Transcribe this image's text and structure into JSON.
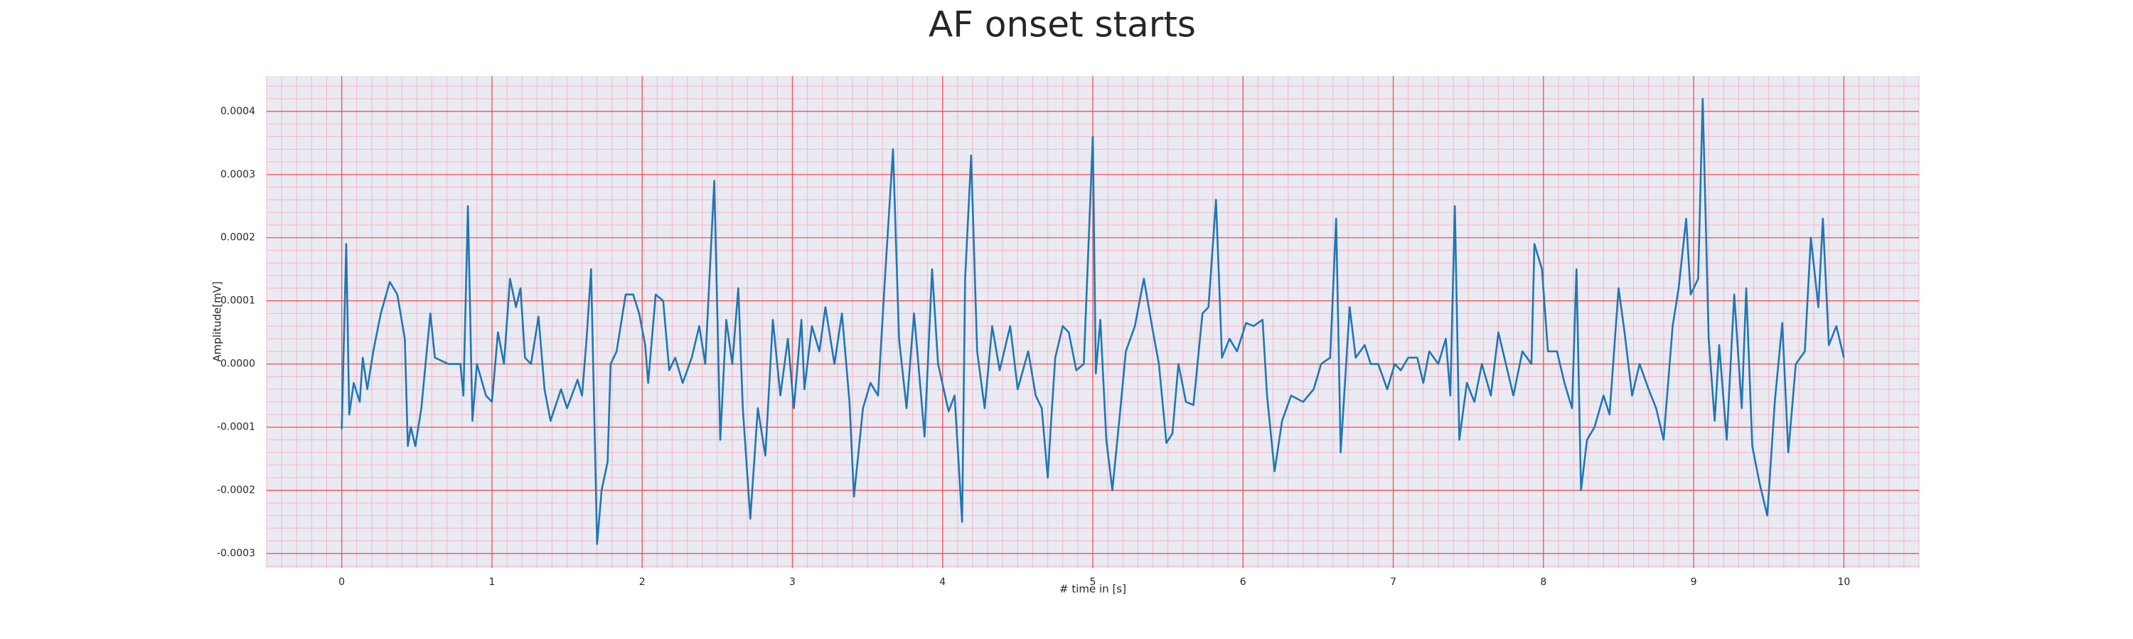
{
  "chart_data": {
    "type": "line",
    "title": "AF onset starts",
    "xlabel": "# time in [s]",
    "ylabel": "Amplitude[mV]",
    "color": "#1f77b4",
    "grid": true,
    "minor_grid": true,
    "xlim": [
      -0.5,
      10.5
    ],
    "ylim": [
      -0.000323,
      0.000456
    ],
    "xticks": [
      0,
      1,
      2,
      3,
      4,
      5,
      6,
      7,
      8,
      9,
      10
    ],
    "yticks": [
      -0.0003,
      -0.0002,
      -0.0001,
      {
        "value": 0,
        "label": "0.0000"
      },
      0.0001,
      0.0002,
      0.0003,
      0.0004
    ],
    "x": [
      0,
      0.03,
      0.05,
      0.08,
      0.12,
      0.14,
      0.17,
      0.21,
      0.26,
      0.32,
      0.37,
      0.42,
      0.44,
      0.46,
      0.49,
      0.53,
      0.59,
      0.62,
      0.71,
      0.79,
      0.81,
      0.84,
      0.87,
      0.9,
      0.96,
      1.0,
      1.04,
      1.08,
      1.12,
      1.16,
      1.19,
      1.22,
      1.26,
      1.31,
      1.35,
      1.39,
      1.46,
      1.5,
      1.57,
      1.6,
      1.63,
      1.66,
      1.7,
      1.73,
      1.77,
      1.79,
      1.83,
      1.89,
      1.94,
      1.98,
      2.02,
      2.04,
      2.09,
      2.14,
      2.18,
      2.22,
      2.27,
      2.33,
      2.38,
      2.42,
      2.48,
      2.52,
      2.56,
      2.6,
      2.64,
      2.67,
      2.72,
      2.77,
      2.82,
      2.87,
      2.92,
      2.97,
      3.01,
      3.06,
      3.08,
      3.13,
      3.18,
      3.22,
      3.28,
      3.33,
      3.38,
      3.41,
      3.47,
      3.52,
      3.57,
      3.62,
      3.67,
      3.71,
      3.76,
      3.81,
      3.88,
      3.93,
      3.97,
      4.04,
      4.08,
      4.13,
      4.15,
      4.19,
      4.23,
      4.28,
      4.33,
      4.38,
      4.45,
      4.5,
      4.57,
      4.62,
      4.66,
      4.7,
      4.72,
      4.75,
      4.8,
      4.84,
      4.89,
      4.94,
      5.0,
      5.02,
      5.05,
      5.09,
      5.13,
      5.18,
      5.22,
      5.28,
      5.34,
      5.39,
      5.44,
      5.49,
      5.53,
      5.57,
      5.62,
      5.67,
      5.73,
      5.77,
      5.82,
      5.86,
      5.91,
      5.96,
      6.02,
      6.07,
      6.13,
      6.16,
      6.21,
      6.26,
      6.32,
      6.4,
      6.47,
      6.52,
      6.58,
      6.62,
      6.65,
      6.71,
      6.75,
      6.81,
      6.85,
      6.9,
      6.96,
      7.01,
      7.05,
      7.1,
      7.16,
      7.2,
      7.24,
      7.3,
      7.35,
      7.38,
      7.41,
      7.44,
      7.49,
      7.54,
      7.59,
      7.65,
      7.7,
      7.76,
      7.8,
      7.86,
      7.92,
      7.94,
      7.99,
      8.03,
      8.09,
      8.14,
      8.19,
      8.22,
      8.25,
      8.29,
      8.34,
      8.4,
      8.44,
      8.5,
      8.54,
      8.59,
      8.64,
      8.7,
      8.75,
      8.8,
      8.86,
      8.9,
      8.95,
      8.98,
      9.03,
      9.06,
      9.1,
      9.14,
      9.17,
      9.22,
      9.27,
      9.32,
      9.35,
      9.39,
      9.44,
      9.49,
      9.54,
      9.59,
      9.63,
      9.68,
      9.74,
      9.78,
      9.83,
      9.86,
      9.9,
      9.95,
      10.0
    ],
    "values": [
      -0.000103,
      0.00019,
      -8e-05,
      -3e-05,
      -6e-05,
      1e-05,
      -4e-05,
      2e-05,
      8e-05,
      0.00013,
      0.00011,
      4e-05,
      -0.00013,
      -0.0001,
      -0.00013,
      -7e-05,
      8e-05,
      1e-05,
      0.0,
      0.0,
      -5e-05,
      0.00025,
      -9e-05,
      0.0,
      -5e-05,
      -6e-05,
      5e-05,
      0.0,
      0.000135,
      9e-05,
      0.00012,
      1e-05,
      0.0,
      7.5e-05,
      -4e-05,
      -9e-05,
      -4e-05,
      -7e-05,
      -2.5e-05,
      -5e-05,
      4e-05,
      0.00015,
      -0.000285,
      -0.0002,
      -0.000155,
      0.0,
      2e-05,
      0.00011,
      0.00011,
      8e-05,
      3e-05,
      -3e-05,
      0.00011,
      0.0001,
      -1e-05,
      1e-05,
      -3e-05,
      1e-05,
      6e-05,
      0.0,
      0.00029,
      -0.00012,
      7e-05,
      0.0,
      0.00012,
      -7e-05,
      -0.000245,
      -7e-05,
      -0.000145,
      7e-05,
      -5e-05,
      4e-05,
      -7e-05,
      7e-05,
      -4e-05,
      6e-05,
      2e-05,
      9e-05,
      0.0,
      8e-05,
      -6e-05,
      -0.00021,
      -7e-05,
      -3e-05,
      -5e-05,
      0.00015,
      0.00034,
      4e-05,
      -7e-05,
      8e-05,
      -0.000115,
      0.00015,
      0.0,
      -7.5e-05,
      -5e-05,
      -0.00025,
      0.000135,
      0.00033,
      2e-05,
      -7e-05,
      6e-05,
      -1e-05,
      6e-05,
      -4e-05,
      2e-05,
      -5e-05,
      -7e-05,
      -0.00018,
      -0.0001,
      1e-05,
      6e-05,
      5e-05,
      -1e-05,
      0.0,
      0.00036,
      -1.5e-05,
      7e-05,
      -0.00012,
      -0.0002,
      -8e-05,
      2e-05,
      6e-05,
      0.000135,
      6.5e-05,
      0.0,
      -0.000125,
      -0.00011,
      0.0,
      -6e-05,
      -6.5e-05,
      8e-05,
      9e-05,
      0.00026,
      1e-05,
      4e-05,
      2e-05,
      6.5e-05,
      6e-05,
      7e-05,
      -5e-05,
      -0.00017,
      -9e-05,
      -5e-05,
      -6e-05,
      -4e-05,
      0.0,
      1e-05,
      0.00023,
      -0.00014,
      9e-05,
      1e-05,
      3e-05,
      0.0,
      0.0,
      -4e-05,
      0.0,
      -1e-05,
      1e-05,
      1e-05,
      -3e-05,
      2e-05,
      0.0,
      4e-05,
      -5e-05,
      0.00025,
      -0.00012,
      -3e-05,
      -6e-05,
      0.0,
      -5e-05,
      5e-05,
      -1e-05,
      -5e-05,
      2e-05,
      0.0,
      0.00019,
      0.00015,
      2e-05,
      2e-05,
      -3e-05,
      -7e-05,
      0.00015,
      -0.0002,
      -0.00012,
      -0.0001,
      -5e-05,
      -8e-05,
      0.00012,
      5e-05,
      -5e-05,
      0.0,
      -4e-05,
      -7e-05,
      -0.00012,
      6e-05,
      0.00012,
      0.00023,
      0.00011,
      0.000135,
      0.00042,
      4e-05,
      -9e-05,
      3e-05,
      -0.00012,
      0.00011,
      -7e-05,
      0.00012,
      -0.00013,
      -0.00019,
      -0.00024,
      -6e-05,
      6.5e-05,
      -0.00014,
      0.0,
      2e-05,
      0.0002,
      9e-05,
      0.00023,
      3e-05,
      6e-05,
      1e-05
    ]
  }
}
